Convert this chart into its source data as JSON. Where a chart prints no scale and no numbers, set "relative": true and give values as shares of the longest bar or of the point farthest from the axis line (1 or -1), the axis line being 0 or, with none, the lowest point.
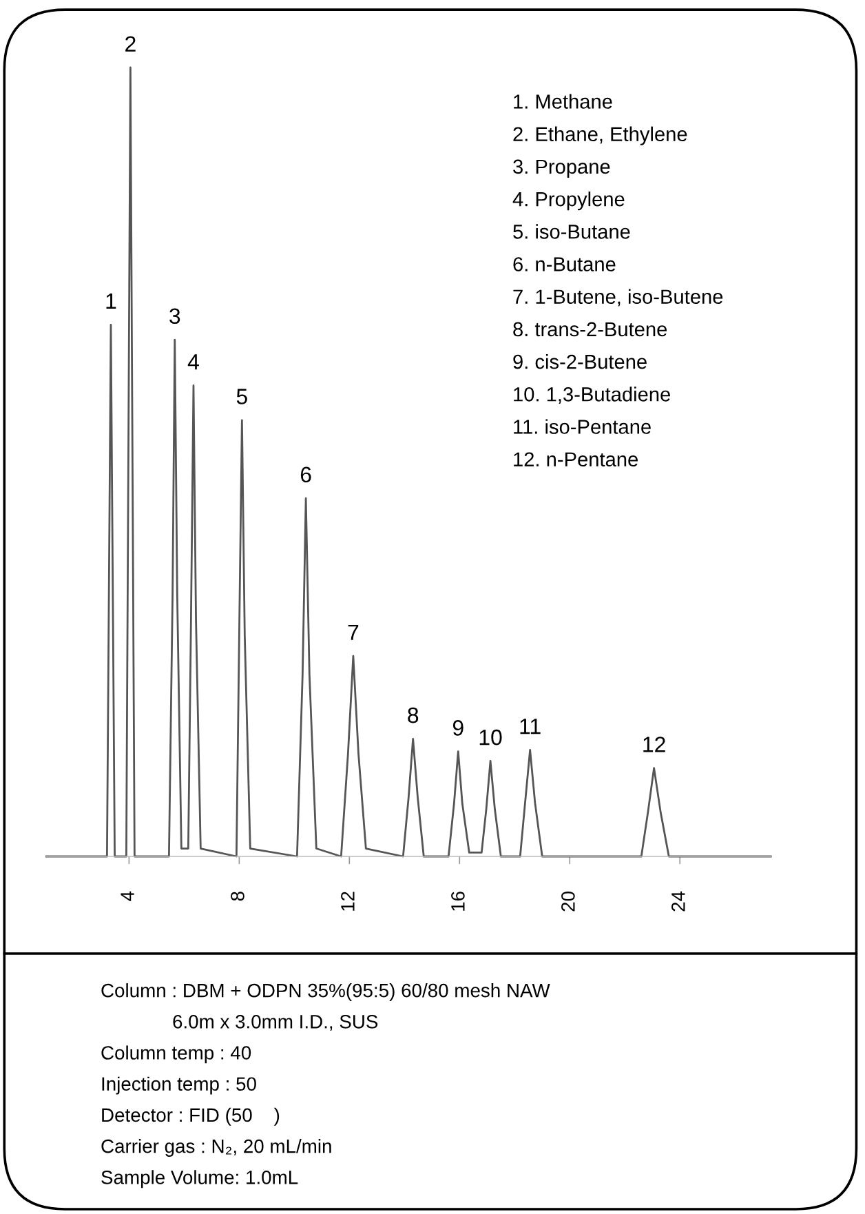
{
  "chart_data": {
    "type": "line",
    "relative": true,
    "color": "#555555",
    "x": [
      1.0,
      3.2,
      3.34,
      3.48,
      3.9,
      4.05,
      4.2,
      5.45,
      5.58,
      5.66,
      5.75,
      5.9,
      6.15,
      6.25,
      6.34,
      6.43,
      6.6,
      7.9,
      8.0,
      8.1,
      8.2,
      8.4,
      10.1,
      10.3,
      10.42,
      10.55,
      10.8,
      11.7,
      11.95,
      12.14,
      12.33,
      12.6,
      13.95,
      14.15,
      14.31,
      14.48,
      14.7,
      15.6,
      15.8,
      15.95,
      16.1,
      16.35,
      16.8,
      16.97,
      17.12,
      17.28,
      17.5,
      18.2,
      18.38,
      18.56,
      18.74,
      19.0,
      22.6,
      22.84,
      23.06,
      23.3,
      23.6,
      27.3
    ],
    "values": [
      0,
      0,
      0.674,
      0,
      0,
      1.0,
      0,
      0,
      0.33,
      0.655,
      0.33,
      0.01,
      0.01,
      0.3,
      0.597,
      0.3,
      0.01,
      0,
      0.28,
      0.553,
      0.28,
      0.01,
      0,
      0.23,
      0.454,
      0.23,
      0.01,
      0,
      0.13,
      0.254,
      0.13,
      0.01,
      0,
      0.075,
      0.149,
      0.075,
      0,
      0,
      0.067,
      0.133,
      0.067,
      0.005,
      0.005,
      0.06,
      0.121,
      0.06,
      0,
      0,
      0.068,
      0.135,
      0.068,
      0,
      0,
      0.056,
      0.112,
      0.056,
      0,
      0
    ],
    "xlim": [
      1.0,
      27.3
    ],
    "xticks": [
      4,
      8,
      12,
      16,
      20,
      24
    ],
    "grid": false,
    "legend": false,
    "annotations": [
      {
        "text": "1",
        "x": 3.34,
        "y": 0.674
      },
      {
        "text": "2",
        "x": 4.05,
        "y": 1.0
      },
      {
        "text": "3",
        "x": 5.66,
        "y": 0.655
      },
      {
        "text": "4",
        "x": 6.34,
        "y": 0.597
      },
      {
        "text": "5",
        "x": 8.1,
        "y": 0.553
      },
      {
        "text": "6",
        "x": 10.42,
        "y": 0.454
      },
      {
        "text": "7",
        "x": 12.14,
        "y": 0.254
      },
      {
        "text": "8",
        "x": 14.31,
        "y": 0.149
      },
      {
        "text": "9",
        "x": 15.95,
        "y": 0.133
      },
      {
        "text": "10",
        "x": 17.12,
        "y": 0.121
      },
      {
        "text": "11",
        "x": 18.56,
        "y": 0.135
      },
      {
        "text": "12",
        "x": 23.06,
        "y": 0.112
      },
      "1. Methane",
      "2. Ethane, Ethylene",
      "3. Propane",
      "4. Propylene",
      "5. iso-Butane",
      "6. n-Butane",
      "7. 1-Butene, iso-Butene",
      "8. trans-2-Butene",
      "9. cis-2-Butene",
      "10. 1,3-Butadiene",
      "11. iso-Pentane",
      "12. n-Pentane",
      "Column : DBM + ODPN 35%(95:5) 60/80 mesh NAW",
      "6.0m x 3.0mm I.D., SUS",
      "Column temp : 40",
      "Injection temp : 50",
      "Detector : FID (50    )",
      "Carrier gas : N₂, 20 mL/min",
      "Sample Volume: 1.0mL"
    ]
  }
}
